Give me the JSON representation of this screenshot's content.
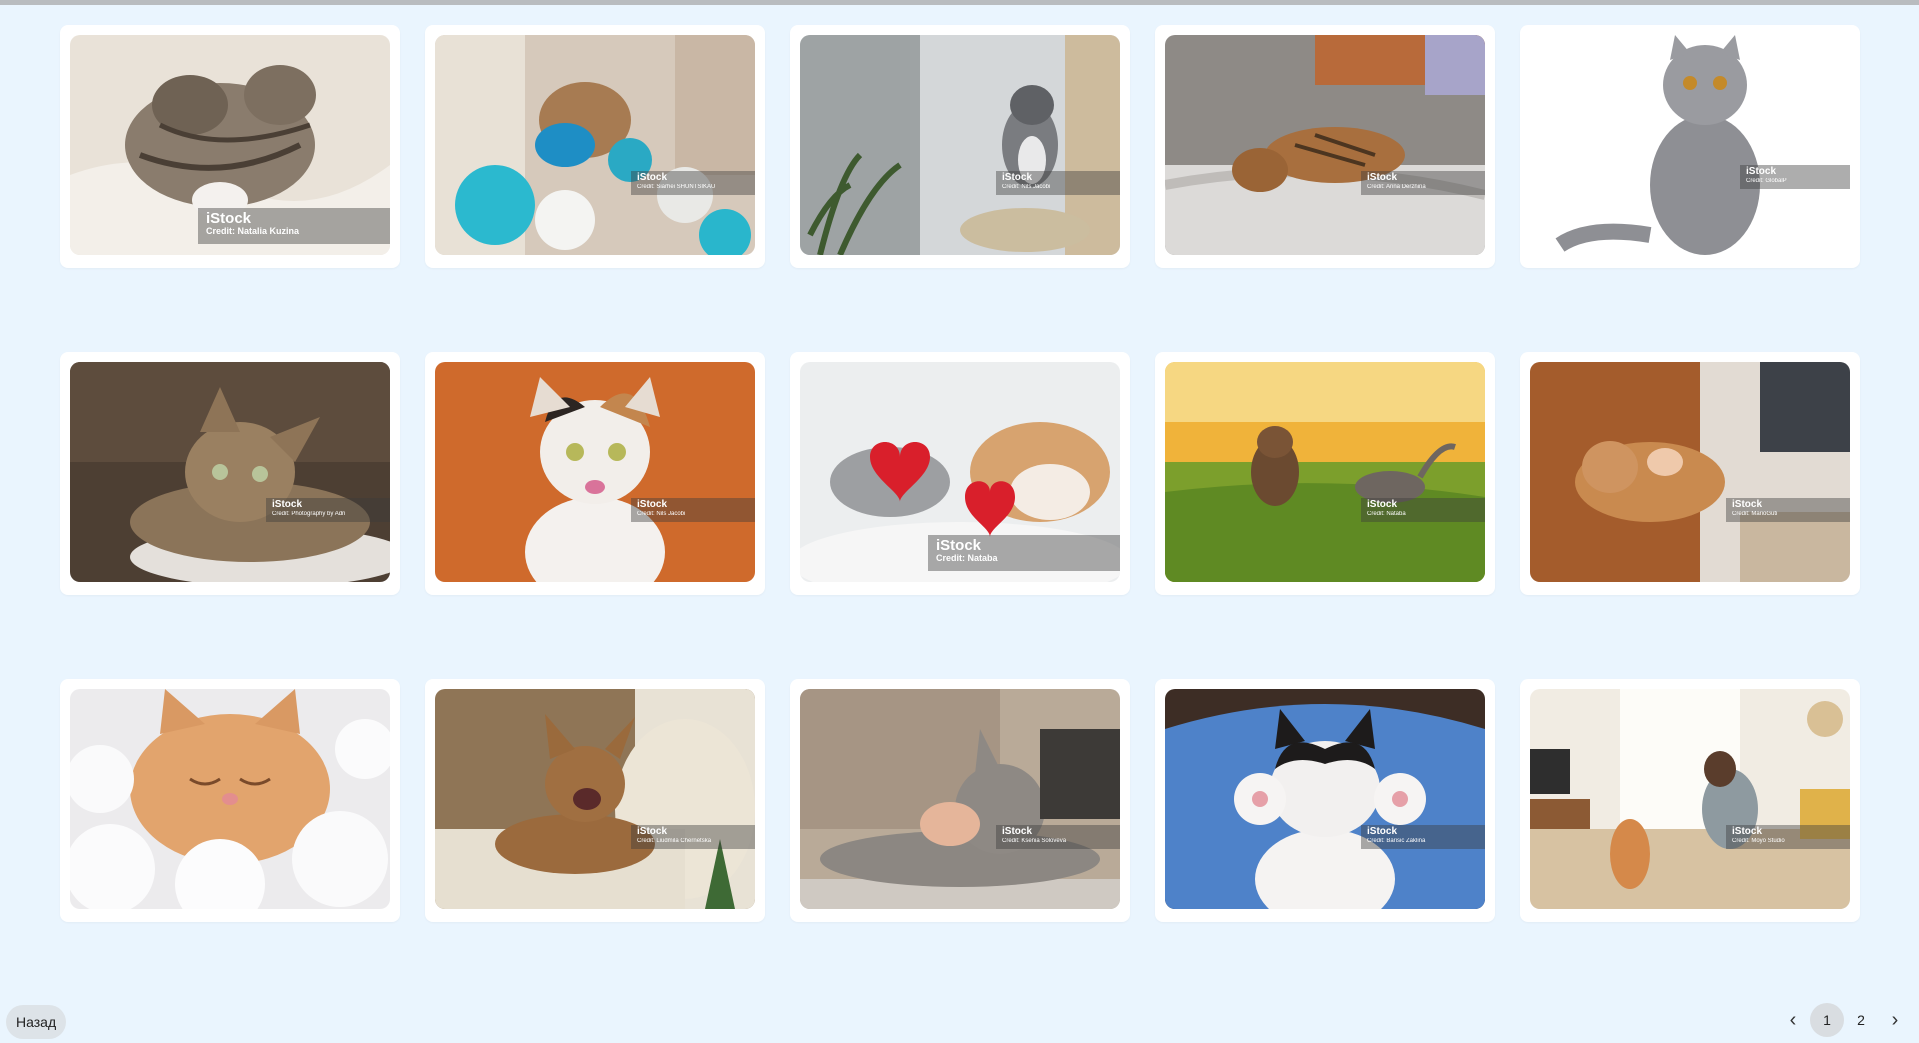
{
  "gallery": {
    "items": [
      {
        "brand": "iStock",
        "credit": "Credit: Natalia Kuzina",
        "style": "large"
      },
      {
        "brand": "iStock",
        "credit": "Credit: Siarhei SHUNTSIKAU",
        "style": "small"
      },
      {
        "brand": "iStock",
        "credit": "Credit: Nils Jacobi",
        "style": "small"
      },
      {
        "brand": "iStock",
        "credit": "Credit: Anna Derzhina",
        "style": "small"
      },
      {
        "brand": "iStock",
        "credit": "Credit: GlobalP",
        "style": "mid"
      },
      {
        "brand": "iStock",
        "credit": "Credit: Photography by Adri",
        "style": "small"
      },
      {
        "brand": "iStock",
        "credit": "Credit: Nils Jacobi",
        "style": "small"
      },
      {
        "brand": "iStock",
        "credit": "Credit: Nataba",
        "style": "large"
      },
      {
        "brand": "iStock",
        "credit": "Credit: Nataba",
        "style": "small"
      },
      {
        "brand": "iStock",
        "credit": "Credit: MarioGuti",
        "style": "small"
      },
      {
        "brand": "",
        "credit": "",
        "style": "none"
      },
      {
        "brand": "iStock",
        "credit": "Credit: Liudmila Chernetska",
        "style": "small"
      },
      {
        "brand": "iStock",
        "credit": "Credit: Ksenia Soloveva",
        "style": "small"
      },
      {
        "brand": "iStock",
        "credit": "Credit: Barisic Zaklina",
        "style": "small"
      },
      {
        "brand": "iStock",
        "credit": "Credit: Moyo Studio",
        "style": "small"
      }
    ]
  },
  "footer": {
    "back_label": "Назад",
    "pages": [
      "1",
      "2"
    ],
    "current_page": "1"
  }
}
